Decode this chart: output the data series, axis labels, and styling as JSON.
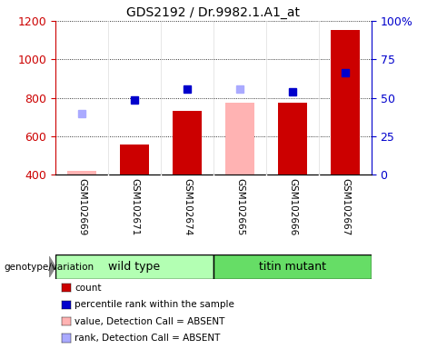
{
  "title": "GDS2192 / Dr.9982.1.A1_at",
  "samples": [
    "GSM102669",
    "GSM102671",
    "GSM102674",
    "GSM102665",
    "GSM102666",
    "GSM102667"
  ],
  "bar_values": [
    null,
    557,
    733,
    null,
    775,
    1155
  ],
  "bar_values_absent": [
    420,
    null,
    null,
    775,
    null,
    null
  ],
  "rank_dots": [
    null,
    787,
    845,
    null,
    832,
    930
  ],
  "rank_dots_absent": [
    718,
    null,
    null,
    845,
    null,
    null
  ],
  "bar_color": "#cc0000",
  "bar_absent_color": "#ffb3b3",
  "rank_color": "#0000cc",
  "rank_absent_color": "#aaaaff",
  "ylim_left": [
    400,
    1200
  ],
  "ylim_right": [
    0,
    100
  ],
  "yticks_left": [
    400,
    600,
    800,
    1000,
    1200
  ],
  "yticks_right": [
    0,
    25,
    50,
    75,
    100
  ],
  "ytick_labels_right": [
    "0",
    "25",
    "50",
    "75",
    "100%"
  ],
  "bar_width": 0.55,
  "group1_label": "wild type",
  "group2_label": "titin mutant",
  "group1_color": "#b3ffb3",
  "group2_color": "#66dd66",
  "group_label": "genotype/variation",
  "legend_items": [
    {
      "label": "count",
      "color": "#cc0000"
    },
    {
      "label": "percentile rank within the sample",
      "color": "#0000cc"
    },
    {
      "label": "value, Detection Call = ABSENT",
      "color": "#ffb3b3"
    },
    {
      "label": "rank, Detection Call = ABSENT",
      "color": "#aaaaff"
    }
  ]
}
